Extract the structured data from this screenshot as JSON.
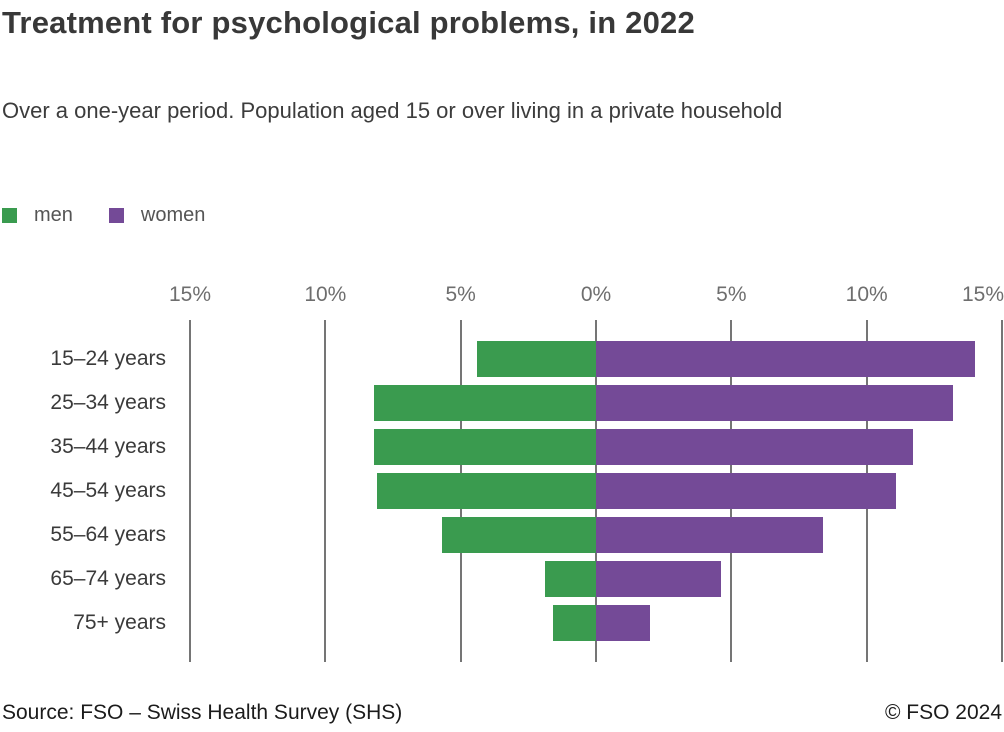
{
  "title": "Treatment for psychological problems, in 2022",
  "subtitle": "Over a one-year period. Population aged 15 or over living in a private household",
  "legend": {
    "men_label": "men",
    "women_label": "women"
  },
  "footer": {
    "source": "Source: FSO – Swiss Health Survey (SHS)",
    "copyright": "© FSO 2024"
  },
  "colors": {
    "men": "#3a9b4f",
    "women": "#744a97",
    "gridline": "#757575",
    "tick_text": "#6e6e6e",
    "category_text": "#3a3a3a",
    "title_text": "#383838",
    "subtitle_text": "#3c3c3c",
    "legend_text": "#555555",
    "footer_text": "#1b1b1b"
  },
  "chart_data": {
    "type": "bar",
    "orientation": "horizontal-diverging",
    "title": "Treatment for psychological problems, in 2022",
    "subtitle": "Over a one-year period. Population aged 15 or over living in a private household",
    "categories": [
      "15–24 years",
      "25–34 years",
      "35–44 years",
      "45–54 years",
      "55–64 years",
      "65–74 years",
      "75+ years"
    ],
    "series": [
      {
        "name": "men",
        "side": "left",
        "values": [
          4.4,
          8.2,
          8.2,
          8.1,
          5.7,
          1.9,
          1.6
        ]
      },
      {
        "name": "women",
        "side": "right",
        "values": [
          14.0,
          13.2,
          11.7,
          11.1,
          8.4,
          4.6,
          2.0
        ]
      }
    ],
    "unit": "%",
    "axis": {
      "ticks": [
        -15,
        -10,
        -5,
        0,
        5,
        10,
        15
      ],
      "tick_labels": [
        "15%",
        "10%",
        "5%",
        "0%",
        "5%",
        "10%",
        "15%"
      ],
      "xlim": [
        -15,
        15
      ]
    },
    "grid": "vertical",
    "legend_position": "top-left"
  }
}
